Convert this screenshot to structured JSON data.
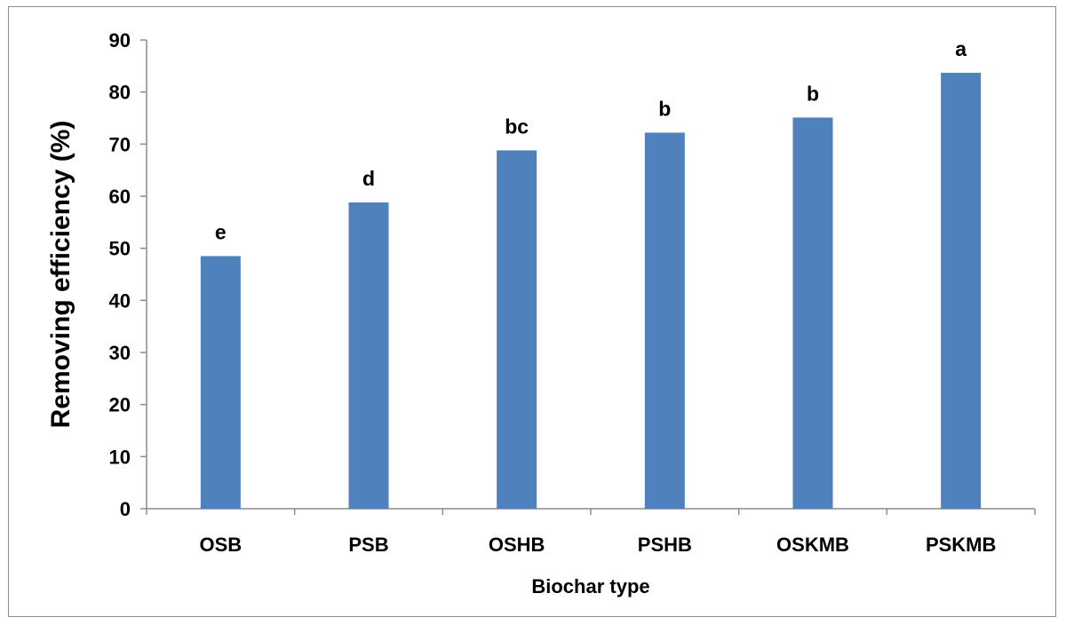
{
  "chart_data": {
    "type": "bar",
    "title": "",
    "xlabel": "Biochar type",
    "ylabel": "Removing efficiency (%)",
    "categories": [
      "OSB",
      "PSB",
      "OSHB",
      "PSHB",
      "OSKMB",
      "PSKMB"
    ],
    "values": [
      48.5,
      58.8,
      68.8,
      72.2,
      75.1,
      83.7
    ],
    "significance_labels": [
      "e",
      "d",
      "bc",
      "b",
      "b",
      "a"
    ],
    "ylim": [
      0,
      90
    ],
    "yticks": [
      0,
      10,
      20,
      30,
      40,
      50,
      60,
      70,
      80,
      90
    ],
    "grid": false,
    "legend": "none",
    "bar_color": "#4f81bd"
  }
}
